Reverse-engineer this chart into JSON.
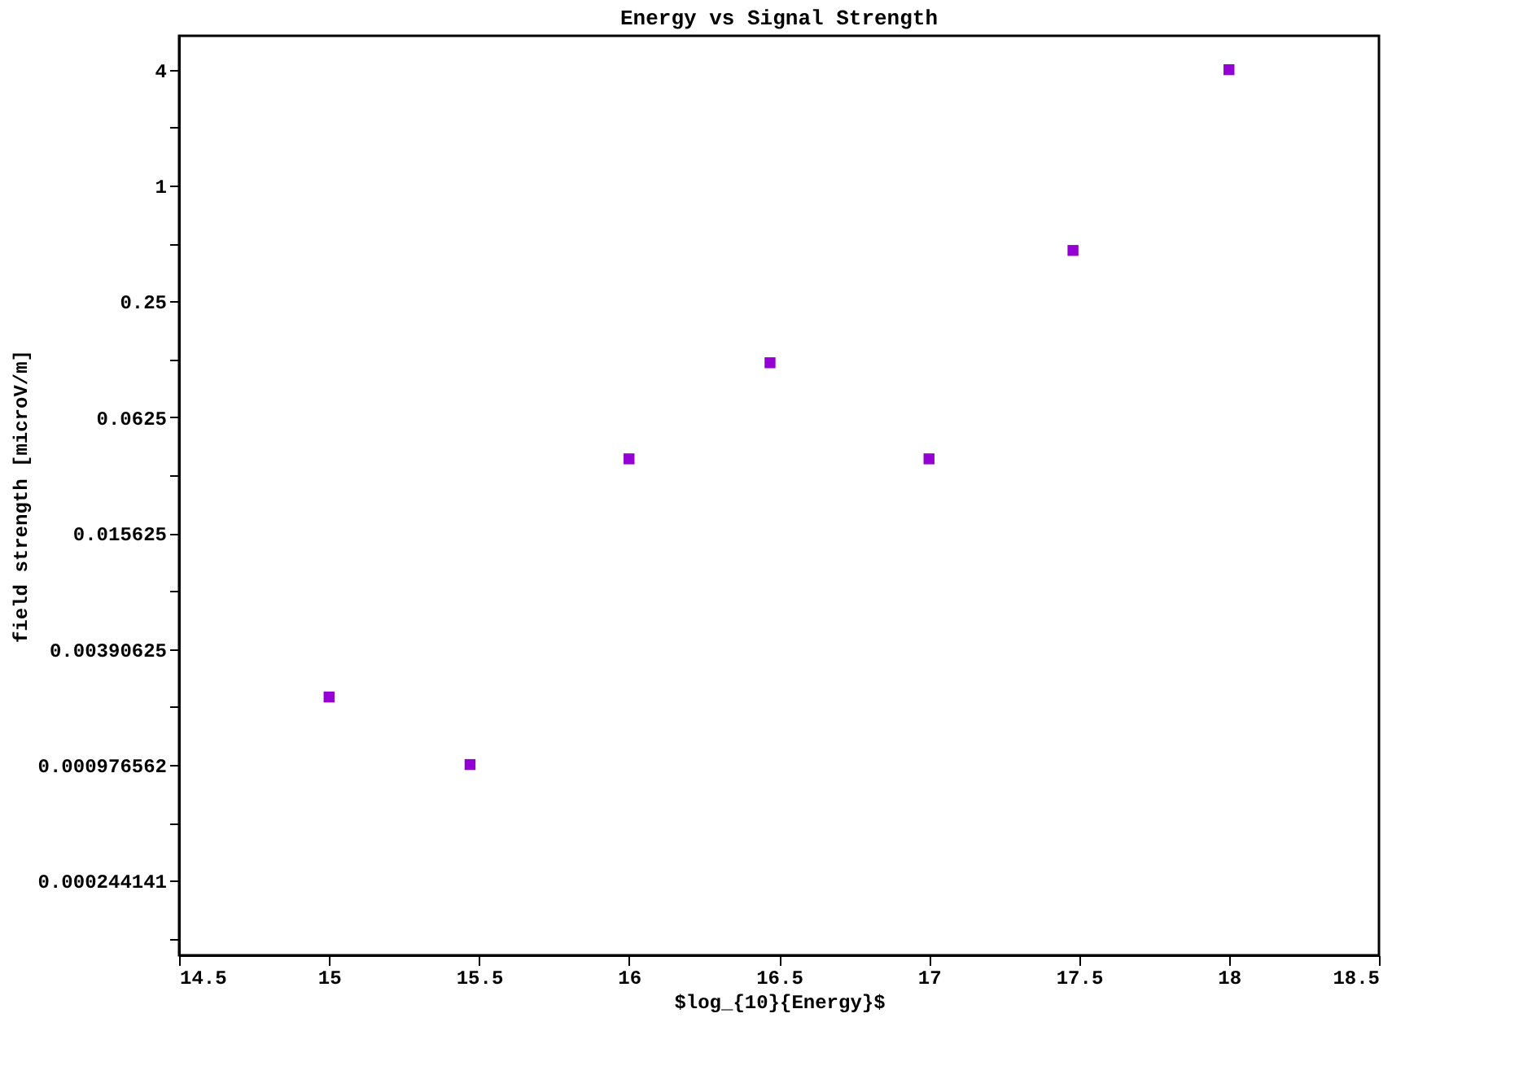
{
  "chart_data": {
    "type": "scatter",
    "title": "Energy vs Signal Strength",
    "xlabel": "$log_{10}{Energy}$",
    "ylabel": "field strength [microV/m]",
    "x": [
      15,
      15.47,
      16,
      16.47,
      17,
      17.48,
      18
    ],
    "series": [
      {
        "color": "#9400d3",
        "values": [
          0.0022,
          0.00098,
          0.038,
          0.12,
          0.038,
          0.46,
          4
        ]
      }
    ],
    "xlim": [
      14.5,
      18.5
    ],
    "xticks": [
      {
        "value": 14.5,
        "label": "14.5"
      },
      15,
      {
        "value": 15.5,
        "label": "15.5"
      },
      16,
      {
        "value": 16.5,
        "label": "16.5"
      },
      17,
      {
        "value": 17.5,
        "label": "17.5"
      },
      18,
      {
        "value": 18.5,
        "label": "18.5"
      }
    ],
    "ylim": [
      0.0001,
      6
    ],
    "log": "y",
    "yticks": [
      {
        "value": 4,
        "label": "4"
      },
      {
        "value": 2,
        "label": null
      },
      {
        "value": 1,
        "label": "1"
      },
      {
        "value": 0.5,
        "label": null
      },
      {
        "value": 0.25,
        "label": "0.25"
      },
      {
        "value": 0.125,
        "label": null
      },
      {
        "value": 0.0625,
        "label": "0.0625"
      },
      {
        "value": 0.03125,
        "label": null
      },
      {
        "value": 0.015625,
        "label": "0.015625"
      },
      {
        "value": 0.0078125,
        "label": null
      },
      {
        "value": 0.00390625,
        "label": "0.00390625"
      },
      {
        "value": 0.001953125,
        "label": null
      },
      {
        "value": 0.0009765625,
        "label": "0.000976562"
      },
      {
        "value": 0.00048828125,
        "label": null
      },
      {
        "value": 0.000244140625,
        "label": "0.000244141"
      },
      {
        "value": 0.0001220703125,
        "label": null
      }
    ],
    "grid": false,
    "marker": "square"
  }
}
